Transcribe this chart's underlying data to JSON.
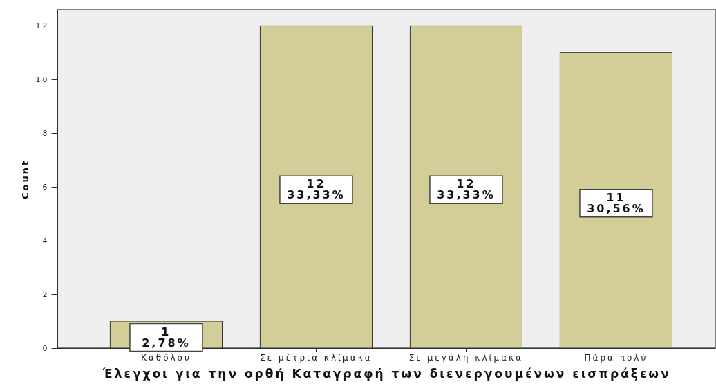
{
  "chart_data": {
    "type": "bar",
    "categories": [
      "Καθόλου",
      "Σε μέτρια κλίμακα",
      "Σε μεγάλη κλίμακα",
      "Πάρα πολύ"
    ],
    "values": [
      1,
      12,
      12,
      11
    ],
    "color": "#d3ce98",
    "value_labels": [
      "1\n2,78%",
      "12\n33,33%",
      "12\n33,33%",
      "11\n30,56%"
    ],
    "xlabel": "Έλεγχοι για την ορθή Καταγραφή των διενεργουμένων εισπράξεων",
    "ylabel": "Count",
    "ylim": [
      0,
      12.6
    ],
    "yticks": [
      0,
      2,
      4,
      6,
      8,
      10,
      12
    ]
  }
}
